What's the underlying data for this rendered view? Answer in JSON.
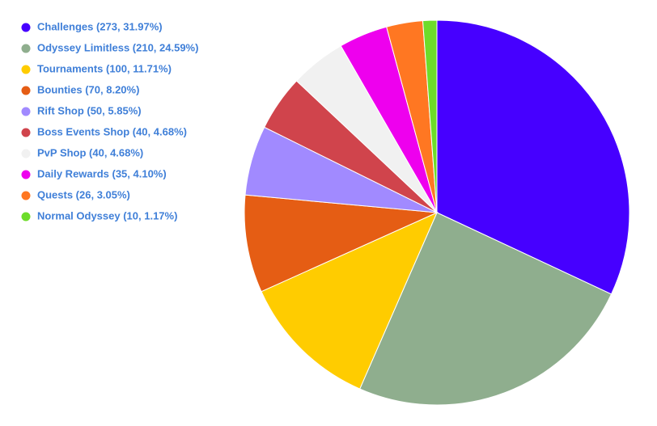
{
  "chart_data": {
    "type": "pie",
    "categories": [
      "Challenges (273, 31.97%)",
      "Odyssey Limitless (210, 24.59%)",
      "Tournaments (100, 11.71%)",
      "Bounties (70, 8.20%)",
      "Rift Shop (50, 5.85%)",
      "Boss Events Shop (40, 4.68%)",
      "PvP Shop (40, 4.68%)",
      "Daily Rewards (35, 4.10%)",
      "Quests (26, 3.05%)",
      "Normal Odyssey (10, 1.17%)"
    ],
    "values": [
      273,
      210,
      100,
      70,
      50,
      40,
      40,
      35,
      26,
      10
    ],
    "colors": [
      "#4600ff",
      "#8fae8e",
      "#ffcc00",
      "#e55d14",
      "#a18aff",
      "#d0444c",
      "#f1f1f1",
      "#ee00ee",
      "#ff7722",
      "#6ddc2a"
    ],
    "legend": "top-left"
  }
}
